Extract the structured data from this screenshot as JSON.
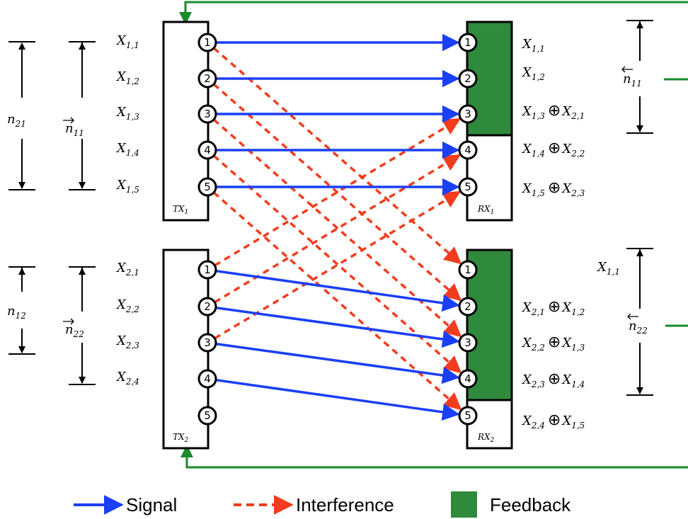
{
  "colors": {
    "signal": "#1a3ff5",
    "interference": "#f23c1e",
    "feedback": "#2f8a3c",
    "feedback_line": "#198a2a"
  },
  "tx1": {
    "label": "TX",
    "sub": "1"
  },
  "tx2": {
    "label": "TX",
    "sub": "2"
  },
  "rx1": {
    "label": "RX",
    "sub": "1"
  },
  "rx2": {
    "label": "RX",
    "sub": "2"
  },
  "node_numbers": [
    "1",
    "2",
    "3",
    "4",
    "5"
  ],
  "tx1_labels": [
    {
      "v": "X",
      "s": "1,1"
    },
    {
      "v": "X",
      "s": "1,2"
    },
    {
      "v": "X",
      "s": "1,3"
    },
    {
      "v": "X",
      "s": "1,4"
    },
    {
      "v": "X",
      "s": "1,5"
    }
  ],
  "tx2_labels": [
    {
      "v": "X",
      "s": "2,1"
    },
    {
      "v": "X",
      "s": "2,2"
    },
    {
      "v": "X",
      "s": "2,3"
    },
    {
      "v": "X",
      "s": "2,4"
    }
  ],
  "rx1_labels": [
    [
      {
        "v": "X",
        "s": "1,1"
      }
    ],
    [
      {
        "v": "X",
        "s": "1,2"
      }
    ],
    [
      {
        "v": "X",
        "s": "1,3"
      },
      {
        "v": "X",
        "s": "2,1"
      }
    ],
    [
      {
        "v": "X",
        "s": "1,4"
      },
      {
        "v": "X",
        "s": "2,2"
      }
    ],
    [
      {
        "v": "X",
        "s": "1,5"
      },
      {
        "v": "X",
        "s": "2,3"
      }
    ]
  ],
  "rx2_labels": [
    [
      {
        "v": "X",
        "s": "1,1"
      }
    ],
    [
      {
        "v": "X",
        "s": "2,1"
      },
      {
        "v": "X",
        "s": "1,2"
      }
    ],
    [
      {
        "v": "X",
        "s": "2,2"
      },
      {
        "v": "X",
        "s": "1,3"
      }
    ],
    [
      {
        "v": "X",
        "s": "2,3"
      },
      {
        "v": "X",
        "s": "1,4"
      }
    ],
    [
      {
        "v": "X",
        "s": "2,4"
      },
      {
        "v": "X",
        "s": "1,5"
      }
    ]
  ],
  "dims": {
    "n21": {
      "v": "n",
      "s": "21"
    },
    "n11_fwd": {
      "v": "n",
      "s": "11"
    },
    "n12": {
      "v": "n",
      "s": "12"
    },
    "n22_fwd": {
      "v": "n",
      "s": "22"
    },
    "n11_back": {
      "v": "n",
      "s": "11"
    },
    "n22_back": {
      "v": "n",
      "s": "22"
    }
  },
  "links": {
    "signal_1": [
      [
        1,
        1
      ],
      [
        2,
        2
      ],
      [
        3,
        3
      ],
      [
        4,
        4
      ],
      [
        5,
        5
      ]
    ],
    "signal_2": [
      [
        1,
        2
      ],
      [
        2,
        3
      ],
      [
        3,
        4
      ],
      [
        4,
        5
      ]
    ],
    "interf_1_to_rx2": [
      [
        1,
        1
      ],
      [
        2,
        2
      ],
      [
        3,
        3
      ],
      [
        4,
        4
      ],
      [
        5,
        5
      ]
    ],
    "interf_2_to_rx1": [
      [
        1,
        3
      ],
      [
        2,
        4
      ],
      [
        3,
        5
      ]
    ]
  },
  "legend": {
    "signal": "Signal",
    "interference": "Interference",
    "feedback": "Feedback"
  }
}
